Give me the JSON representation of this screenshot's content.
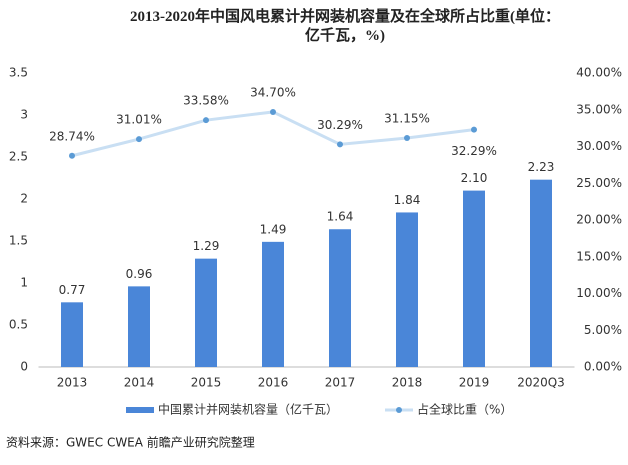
{
  "chart_data": {
    "type": "bar_line",
    "title": "2013-2020年中国风电累计并网装机容量及在全球所占比重(单位：亿千瓦，%)",
    "categories": [
      "2013",
      "2014",
      "2015",
      "2016",
      "2017",
      "2018",
      "2019",
      "2020Q3"
    ],
    "series": [
      {
        "name": "中国累计并网装机容量（亿千瓦）",
        "type": "bar",
        "color": "#4a86d8",
        "values": [
          0.77,
          0.96,
          1.29,
          1.49,
          1.64,
          1.84,
          2.1,
          2.23
        ],
        "value_labels": [
          "0.77",
          "0.96",
          "1.29",
          "1.49",
          "1.64",
          "1.84",
          "2.10",
          "2.23"
        ]
      },
      {
        "name": "占全球比重（%）",
        "type": "line",
        "axis": "y2",
        "color": "#c9dff3",
        "marker_color": "#5b9bd5",
        "values": [
          28.74,
          31.01,
          33.58,
          34.7,
          30.29,
          31.15,
          32.29,
          null
        ],
        "value_labels": [
          "28.74%",
          "31.01%",
          "33.58%",
          "34.70%",
          "30.29%",
          "31.15%",
          "32.29%",
          null
        ]
      }
    ],
    "ylim": [
      0,
      3.5
    ],
    "yticks": [
      0,
      0.5,
      1,
      1.5,
      2,
      2.5,
      3,
      3.5
    ],
    "y2lim": [
      0,
      40
    ],
    "y2ticks": [
      {
        "value": 0,
        "label": "0.00%"
      },
      {
        "value": 5,
        "label": "5.00%"
      },
      {
        "value": 10,
        "label": "10.00%"
      },
      {
        "value": 15,
        "label": "15.00%"
      },
      {
        "value": 20,
        "label": "20.00%"
      },
      {
        "value": 25,
        "label": "25.00%"
      },
      {
        "value": 30,
        "label": "30.00%"
      },
      {
        "value": 35,
        "label": "35.00%"
      },
      {
        "value": 40,
        "label": "40.00%"
      }
    ],
    "legend": "bottom",
    "source": "资料来源：GWEC CWEA 前瞻产业研究院整理"
  }
}
